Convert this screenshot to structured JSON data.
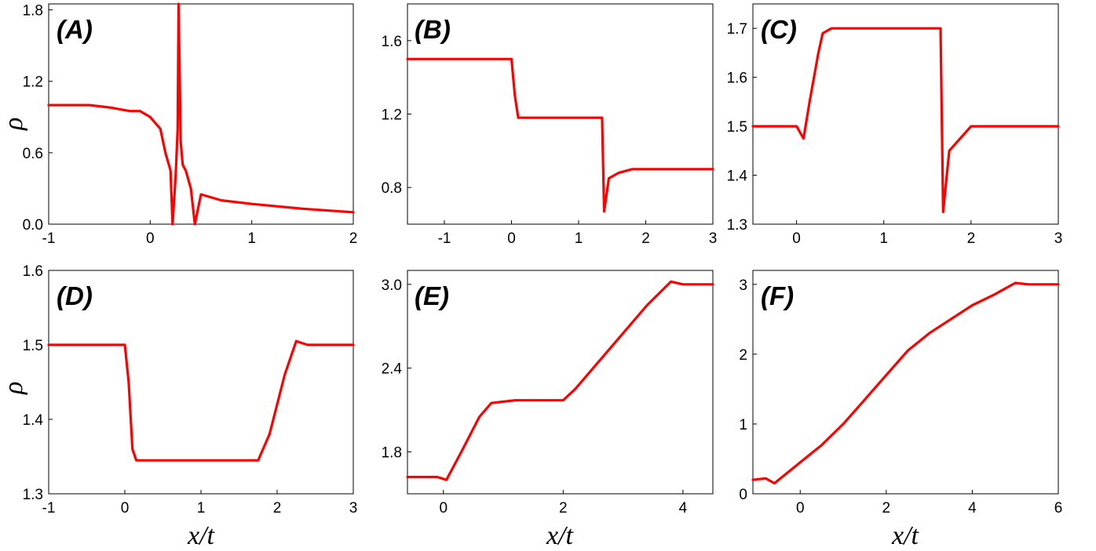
{
  "chart_data": [
    {
      "type": "line",
      "panel_label": "(A)",
      "xlim": [
        -1,
        2
      ],
      "ylim": [
        0,
        1.85
      ],
      "xticks": [
        "-1",
        "0",
        "1",
        "2"
      ],
      "xtick_values": [
        -1,
        0,
        1,
        2
      ],
      "yticks": [
        "0.0",
        "0.6",
        "1.2",
        "1.8"
      ],
      "ytick_values": [
        0,
        0.6,
        1.2,
        1.8
      ],
      "xlabel": "",
      "ylabel": "ρ",
      "series": [
        {
          "color": "#ff0000",
          "x": [
            -1,
            -0.8,
            -0.6,
            -0.4,
            -0.2,
            -0.1,
            0,
            0.05,
            0.1,
            0.15,
            0.2,
            0.22,
            0.25,
            0.27,
            0.28,
            0.3,
            0.32,
            0.35,
            0.4,
            0.44,
            0.5,
            0.7,
            1,
            1.5,
            2
          ],
          "y": [
            1.0,
            1.0,
            1.0,
            0.98,
            0.95,
            0.95,
            0.9,
            0.85,
            0.8,
            0.6,
            0.45,
            0.0,
            0.4,
            0.8,
            1.85,
            0.7,
            0.5,
            0.45,
            0.3,
            0.0,
            0.25,
            0.2,
            0.17,
            0.13,
            0.1
          ]
        }
      ]
    },
    {
      "type": "line",
      "panel_label": "(B)",
      "xlim": [
        -1.55,
        3
      ],
      "ylim": [
        0.6,
        1.8
      ],
      "xticks": [
        "-1",
        "0",
        "1",
        "2",
        "3"
      ],
      "xtick_values": [
        -1,
        0,
        1,
        2,
        3
      ],
      "yticks": [
        "0.8",
        "1.2",
        "1.6"
      ],
      "ytick_values": [
        0.8,
        1.2,
        1.6
      ],
      "xlabel": "",
      "ylabel": "",
      "series": [
        {
          "color": "#ff0000",
          "x": [
            -1.55,
            -0.5,
            -0.2,
            0,
            0.05,
            0.1,
            0.15,
            1.35,
            1.38,
            1.45,
            1.6,
            1.8,
            2.0,
            2.3,
            2.6,
            3
          ],
          "y": [
            1.5,
            1.5,
            1.5,
            1.5,
            1.3,
            1.18,
            1.18,
            1.18,
            0.67,
            0.85,
            0.88,
            0.9,
            0.9,
            0.9,
            0.9,
            0.9
          ]
        }
      ]
    },
    {
      "type": "line",
      "panel_label": "(C)",
      "xlim": [
        -0.5,
        3
      ],
      "ylim": [
        1.3,
        1.75
      ],
      "xticks": [
        "0",
        "1",
        "2",
        "3"
      ],
      "xtick_values": [
        0,
        1,
        2,
        3
      ],
      "yticks": [
        "1.3",
        "1.4",
        "1.5",
        "1.6",
        "1.7"
      ],
      "ytick_values": [
        1.3,
        1.4,
        1.5,
        1.6,
        1.7
      ],
      "xlabel": "",
      "ylabel": "",
      "series": [
        {
          "color": "#ff0000",
          "x": [
            -0.5,
            -0.1,
            0,
            0.08,
            0.15,
            0.25,
            0.3,
            0.4,
            1.0,
            1.5,
            1.65,
            1.68,
            1.75,
            2.0,
            2.3,
            3
          ],
          "y": [
            1.5,
            1.5,
            1.5,
            1.475,
            1.55,
            1.65,
            1.69,
            1.7,
            1.7,
            1.7,
            1.7,
            1.325,
            1.45,
            1.5,
            1.5,
            1.5
          ]
        }
      ]
    },
    {
      "type": "line",
      "panel_label": "(D)",
      "xlim": [
        -1,
        3
      ],
      "ylim": [
        1.3,
        1.6
      ],
      "xticks": [
        "-1",
        "0",
        "1",
        "2",
        "3"
      ],
      "xtick_values": [
        -1,
        0,
        1,
        2,
        3
      ],
      "yticks": [
        "1.3",
        "1.4",
        "1.5",
        "1.6"
      ],
      "ytick_values": [
        1.3,
        1.4,
        1.5,
        1.6
      ],
      "xlabel": "x/t",
      "ylabel": "ρ",
      "series": [
        {
          "color": "#ff0000",
          "x": [
            -1,
            -0.4,
            -0.1,
            0.0,
            0.05,
            0.1,
            0.15,
            0.5,
            1.0,
            1.5,
            1.75,
            1.9,
            2.1,
            2.25,
            2.4,
            3
          ],
          "y": [
            1.5,
            1.5,
            1.5,
            1.5,
            1.45,
            1.36,
            1.345,
            1.345,
            1.345,
            1.345,
            1.345,
            1.38,
            1.46,
            1.505,
            1.5,
            1.5
          ]
        }
      ]
    },
    {
      "type": "line",
      "panel_label": "(E)",
      "xlim": [
        -0.6,
        4.5
      ],
      "ylim": [
        1.5,
        3.1
      ],
      "xticks": [
        "0",
        "2",
        "4"
      ],
      "xtick_values": [
        0,
        2,
        4
      ],
      "yticks": [
        "1.8",
        "2.4",
        "3.0"
      ],
      "ytick_values": [
        1.8,
        2.4,
        3.0
      ],
      "xlabel": "x/t",
      "ylabel": "",
      "series": [
        {
          "color": "#ff0000",
          "x": [
            -0.6,
            -0.1,
            0.05,
            0.3,
            0.6,
            0.8,
            1.2,
            1.6,
            2.0,
            2.2,
            2.6,
            3.0,
            3.4,
            3.8,
            4.0,
            4.5
          ],
          "y": [
            1.62,
            1.62,
            1.6,
            1.8,
            2.05,
            2.15,
            2.17,
            2.17,
            2.17,
            2.25,
            2.45,
            2.65,
            2.85,
            3.02,
            3.0,
            3.0
          ]
        }
      ]
    },
    {
      "type": "line",
      "panel_label": "(F)",
      "xlim": [
        -1.1,
        6
      ],
      "ylim": [
        0,
        3.2
      ],
      "xticks": [
        "0",
        "2",
        "4",
        "6"
      ],
      "xtick_values": [
        0,
        2,
        4,
        6
      ],
      "yticks": [
        "0",
        "1",
        "2",
        "3"
      ],
      "ytick_values": [
        0,
        1,
        2,
        3
      ],
      "xlabel": "x/t",
      "ylabel": "",
      "series": [
        {
          "color": "#ff0000",
          "x": [
            -1.1,
            -0.8,
            -0.6,
            -0.3,
            0,
            0.5,
            1.0,
            1.5,
            2.0,
            2.5,
            3.0,
            3.5,
            4.0,
            4.5,
            5.0,
            5.3,
            6
          ],
          "y": [
            0.2,
            0.22,
            0.15,
            0.3,
            0.45,
            0.7,
            1.0,
            1.35,
            1.7,
            2.05,
            2.3,
            2.5,
            2.7,
            2.85,
            3.02,
            3.0,
            3.0
          ]
        }
      ]
    }
  ]
}
